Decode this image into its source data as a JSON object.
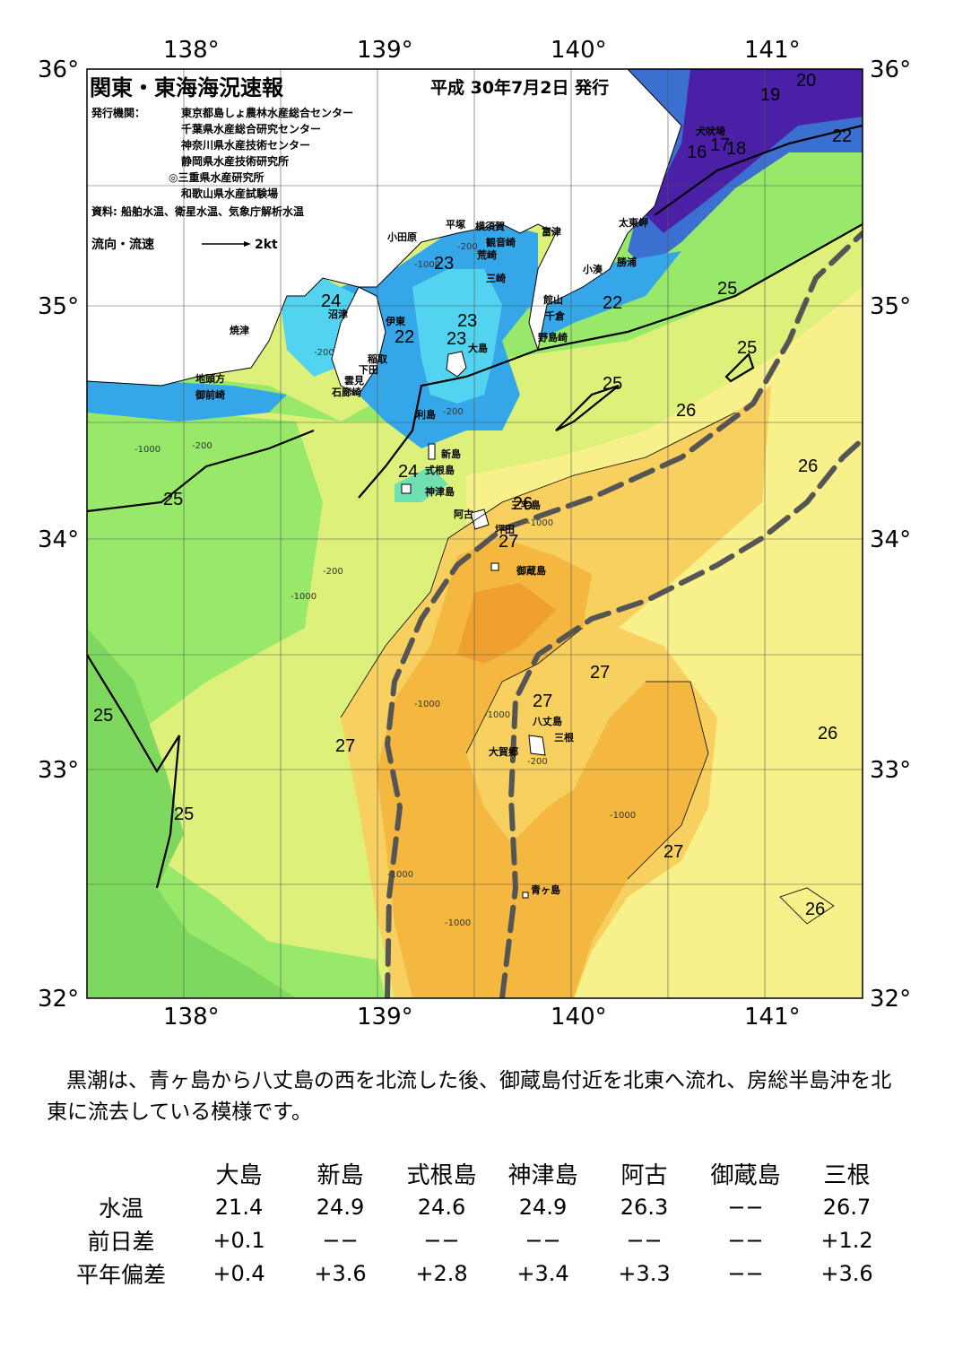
{
  "map": {
    "title": "関東・東海海況速報",
    "issue_date": "平成 30年7月2日 発行",
    "publisher_label": "発行機関：",
    "publishers": [
      "東京都島しょ農林水産総合センター",
      "千葉県水産総合研究センター",
      "神奈川県水産技術センター",
      "静岡県水産技術研究所",
      "◎三重県水産研究所",
      "和歌山県水産試験場"
    ],
    "source": "資料: 船舶水温、衛星水温、気象庁解析水温",
    "flow_legend_label": "流向・流速",
    "flow_legend_value": "2kt",
    "longitude_labels": [
      "138°",
      "139°",
      "140°",
      "141°"
    ],
    "latitude_labels": [
      "36°",
      "35°",
      "34°",
      "33°",
      "32°"
    ],
    "places": [
      "小田原",
      "平塚",
      "横須賀",
      "観音崎",
      "富津",
      "荒崎",
      "三崎",
      "館山",
      "千倉",
      "野島崎",
      "小湊",
      "勝浦",
      "太東岬",
      "犬吠埼",
      "焼津",
      "沼津",
      "伊東",
      "稲取",
      "下田",
      "雲見",
      "石廊崎",
      "地頭方",
      "御前崎",
      "大島",
      "利島",
      "新島",
      "式根島",
      "神津島",
      "三宅島",
      "阿古",
      "坪田",
      "御蔵島",
      "八丈島",
      "三根",
      "大賀郷",
      "青ヶ島"
    ],
    "isotherm_labels": [
      "20",
      "19",
      "22",
      "16",
      "17",
      "18",
      "23",
      "24",
      "22",
      "23",
      "23",
      "22",
      "25",
      "25",
      "25",
      "26",
      "26",
      "25",
      "24",
      "26",
      "27",
      "27",
      "27",
      "25",
      "27",
      "26",
      "25",
      "27",
      "26"
    ],
    "depth_labels": [
      "-200",
      "-1000"
    ],
    "colors": {
      "land": "#ffffff",
      "t_lt17": "#4b1fa6",
      "t_17_19": "#3b6fd0",
      "t_19_21": "#35a6e8",
      "t_21_23": "#52d4f0",
      "t_23_24": "#6fe0b0",
      "t_24_25": "#98e86a",
      "t_25_26": "#dcf07a",
      "t_26_26_5": "#f8f08a",
      "t_26_5_27": "#f8d060",
      "t_27": "#f4b840",
      "t_27_5": "#f0a030",
      "kuroshio": "#555555"
    }
  },
  "description": "黒潮は、青ヶ島から八丈島の西を北流した後、御蔵島付近を北東へ流れ、房総半島沖を北東に流去している模様です。",
  "table": {
    "stations": [
      "大島",
      "新島",
      "式根島",
      "神津島",
      "阿古",
      "御蔵島",
      "三根"
    ],
    "rows": [
      {
        "label": "水温",
        "values": [
          "21.4",
          "24.9",
          "24.6",
          "24.9",
          "26.3",
          "−−",
          "26.7"
        ]
      },
      {
        "label": "前日差",
        "values": [
          "+0.1",
          "−−",
          "−−",
          "−−",
          "−−",
          "−−",
          "+1.2"
        ]
      },
      {
        "label": "平年偏差",
        "values": [
          "+0.4",
          "+3.6",
          "+2.8",
          "+3.4",
          "+3.3",
          "−−",
          "+3.6"
        ]
      }
    ]
  }
}
